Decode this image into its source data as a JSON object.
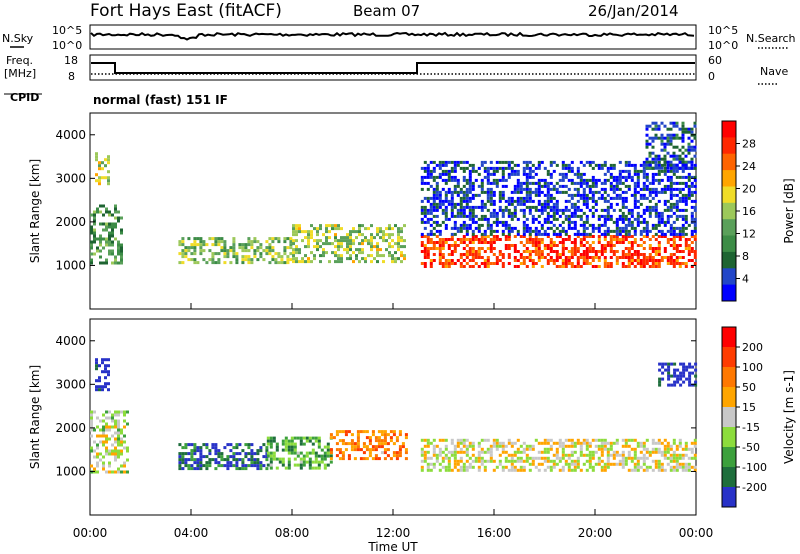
{
  "header": {
    "station": "Fort Hays East (fitACF)",
    "beam": "Beam 07",
    "date": "26/Jan/2014"
  },
  "status_panel": {
    "nsky_label": "N.Sky",
    "nsearch_label": "N.Search",
    "nsky_ticks": [
      "10^5",
      "10^0"
    ],
    "nsearch_ticks": [
      "10^5",
      "10^0"
    ],
    "freq_label": "Freq.",
    "freq_unit": "[MHz]",
    "freq_ticks": [
      "18",
      "8"
    ],
    "nave_label": "Nave",
    "nave_ticks": [
      "60",
      "0"
    ],
    "cpid_label": "CPID",
    "cpid_text": "normal (fast) 151 IF"
  },
  "chart_data": [
    {
      "type": "heatmap",
      "name": "power",
      "ylabel": "Slant Range [km]",
      "ylim": [
        0,
        4500
      ],
      "yticks": [
        1000,
        2000,
        3000,
        4000
      ],
      "xlim": [
        0,
        24
      ],
      "colorbar": {
        "label": "Power [dB]",
        "ticks": [
          "28",
          "24",
          "20",
          "16",
          "12",
          "8",
          "4"
        ],
        "colors": [
          "#0000ff",
          "#2246c8",
          "#1e6432",
          "#3c8c46",
          "#5aa05a",
          "#9cc85a",
          "#f0dc28",
          "#ffa500",
          "#ff6400",
          "#ff2800",
          "#ff0000"
        ]
      },
      "regions": [
        {
          "t0": 0.0,
          "t1": 1.3,
          "r0": 1050,
          "r1": 2400,
          "level": 0.35
        },
        {
          "t0": 0.2,
          "t1": 0.7,
          "r0": 2900,
          "r1": 3600,
          "level": 0.55
        },
        {
          "t0": 3.5,
          "t1": 8.0,
          "r0": 1050,
          "r1": 1650,
          "level": 0.45
        },
        {
          "t0": 8.0,
          "t1": 12.5,
          "r0": 1100,
          "r1": 1950,
          "level": 0.5
        },
        {
          "t0": 13.1,
          "t1": 24.0,
          "r0": 1000,
          "r1": 1700,
          "level": 0.85
        },
        {
          "t0": 13.1,
          "t1": 24.0,
          "r0": 1700,
          "r1": 3400,
          "level": 0.12
        },
        {
          "t0": 22.0,
          "t1": 24.0,
          "r0": 3200,
          "r1": 4300,
          "level": 0.15
        }
      ]
    },
    {
      "type": "heatmap",
      "name": "velocity",
      "xlabel": "Time UT",
      "ylabel": "Slant Range [km]",
      "ylim": [
        0,
        4500
      ],
      "yticks": [
        1000,
        2000,
        3000,
        4000
      ],
      "xlim": [
        0,
        24
      ],
      "xticks": [
        "00:00",
        "04:00",
        "08:00",
        "12:00",
        "16:00",
        "20:00",
        "00:00"
      ],
      "colorbar": {
        "label": "Velocity [m s-1]",
        "ticks": [
          "200",
          "100",
          "50",
          "15",
          "-15",
          "-50",
          "-100",
          "-200"
        ],
        "colors": [
          "#2832c8",
          "#1e6e3c",
          "#3ca03c",
          "#8cdc3c",
          "#c8c8c8",
          "#ffa500",
          "#ff7800",
          "#ff3c00",
          "#ff0000"
        ]
      },
      "regions": [
        {
          "t0": 0.0,
          "t1": 1.5,
          "r0": 1000,
          "r1": 2400,
          "level": 0.45
        },
        {
          "t0": 0.2,
          "t1": 0.7,
          "r0": 2900,
          "r1": 3600,
          "level": 0.0
        },
        {
          "t0": 3.5,
          "t1": 7.0,
          "r0": 1050,
          "r1": 1650,
          "level": 0.15
        },
        {
          "t0": 7.0,
          "t1": 9.5,
          "r0": 1100,
          "r1": 1800,
          "level": 0.3
        },
        {
          "t0": 9.5,
          "t1": 12.5,
          "r0": 1300,
          "r1": 1950,
          "level": 0.7
        },
        {
          "t0": 13.1,
          "t1": 24.0,
          "r0": 1000,
          "r1": 1750,
          "level": 0.5
        },
        {
          "t0": 22.5,
          "t1": 24.0,
          "r0": 3000,
          "r1": 3500,
          "level": 0.0
        }
      ]
    }
  ]
}
